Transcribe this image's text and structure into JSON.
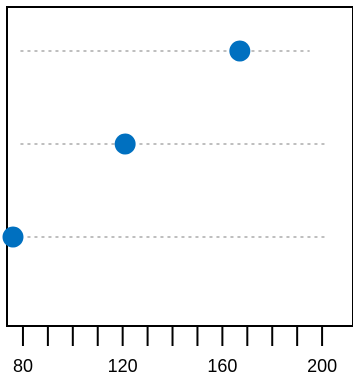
{
  "chart_data": {
    "type": "scatter",
    "subtype": "dot-plot",
    "title": "",
    "xlabel": "",
    "ylabel": "",
    "xlim": [
      74,
      212
    ],
    "x_ticks": [
      80,
      90,
      100,
      110,
      120,
      130,
      140,
      150,
      160,
      170,
      180,
      190,
      200
    ],
    "x_tick_labels": [
      "80",
      "",
      "",
      "",
      "120",
      "",
      "",
      "",
      "160",
      "",
      "",
      "",
      "200"
    ],
    "rows": [
      {
        "value": 167,
        "guide_range": [
          79,
          195
        ]
      },
      {
        "value": 121,
        "guide_range": [
          79,
          202
        ]
      },
      {
        "value": 76,
        "guide_range": [
          79,
          202
        ]
      }
    ],
    "grid": false,
    "colors": {
      "point": "#0070C0",
      "guide": "#bfbfbf",
      "axis": "#000000"
    }
  }
}
